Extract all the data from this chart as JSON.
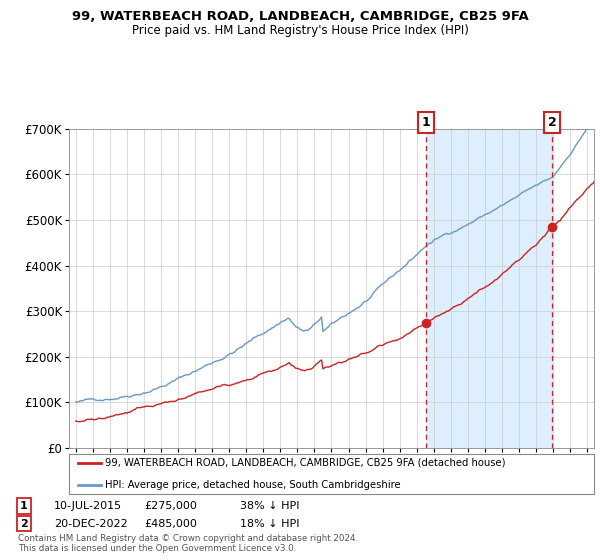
{
  "title1": "99, WATERBEACH ROAD, LANDBEACH, CAMBRIDGE, CB25 9FA",
  "title2": "Price paid vs. HM Land Registry's House Price Index (HPI)",
  "ylim": [
    0,
    700000
  ],
  "yticks": [
    0,
    100000,
    200000,
    300000,
    400000,
    500000,
    600000,
    700000
  ],
  "ytick_labels": [
    "£0",
    "£100K",
    "£200K",
    "£300K",
    "£400K",
    "£500K",
    "£600K",
    "£700K"
  ],
  "hpi_color": "#6699cc",
  "price_color": "#cc2222",
  "sale1_year": 2015.542,
  "sale1_price": 275000,
  "sale2_year": 2022.958,
  "sale2_price": 485000,
  "hpi_at_sale1": 443548,
  "hpi_at_sale2": 591463,
  "legend_line1": "99, WATERBEACH ROAD, LANDBEACH, CAMBRIDGE, CB25 9FA (detached house)",
  "legend_line2": "HPI: Average price, detached house, South Cambridgeshire",
  "footnote1": "Contains HM Land Registry data © Crown copyright and database right 2024.",
  "footnote2": "This data is licensed under the Open Government Licence v3.0.",
  "table_row1_num": "1",
  "table_row1_date": "10-JUL-2015",
  "table_row1_price": "£275,000",
  "table_row1_hpi": "38% ↓ HPI",
  "table_row2_num": "2",
  "table_row2_date": "20-DEC-2022",
  "table_row2_price": "£485,000",
  "table_row2_hpi": "18% ↓ HPI",
  "background_color": "#ffffff",
  "grid_color": "#cccccc",
  "shade_color": "#ddeeff",
  "xmin": 1994.6,
  "xmax": 2025.4,
  "years_start": 1995,
  "years_end": 2026,
  "seed": 42
}
